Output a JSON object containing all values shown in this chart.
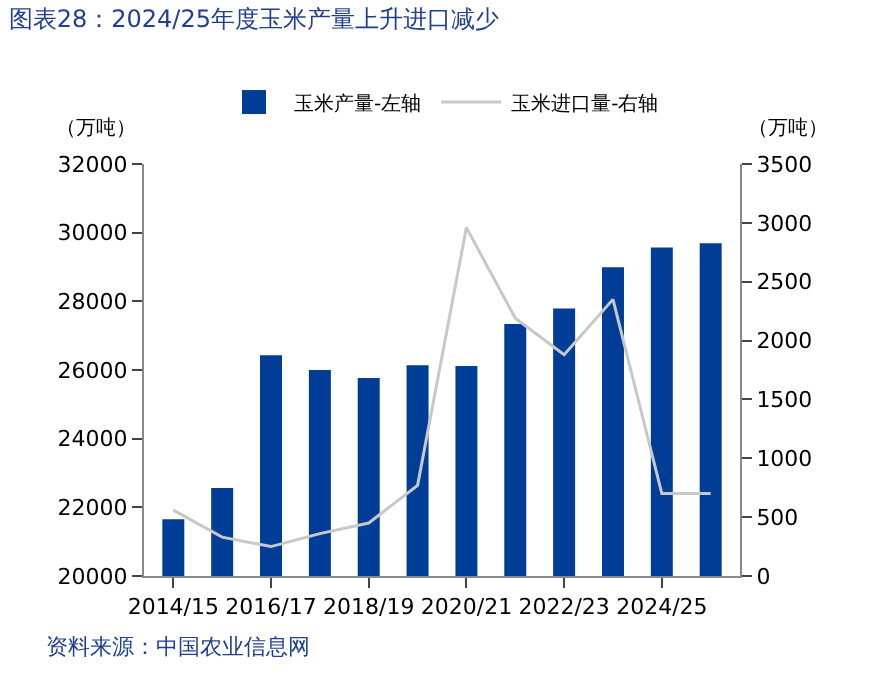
{
  "chart_data": {
    "type": "bar",
    "title": "图表28：2024/25年度玉米产量上升进口减少",
    "categories": [
      "2014/15",
      null,
      "2016/17",
      null,
      "2018/19",
      null,
      "2020/21",
      null,
      "2022/23",
      null,
      "2024/25",
      null
    ],
    "series": [
      {
        "name": "玉米产量-左轴",
        "color": "#003d96",
        "values": [
          21650,
          22560,
          26430,
          26000,
          25770,
          26140,
          26120,
          27340,
          27790,
          28990,
          29570,
          29690
        ]
      },
      {
        "name": "玉米进口量-右轴",
        "type": "line",
        "axis": "y2",
        "color": "#c8c8c8",
        "values": [
          560,
          330,
          250,
          360,
          450,
          770,
          2960,
          2190,
          1880,
          2350,
          700,
          700
        ]
      }
    ],
    "ylim": [
      20000,
      32000
    ],
    "yticks": [
      20000,
      22000,
      24000,
      26000,
      28000,
      30000,
      32000
    ],
    "y2lim": [
      0,
      3500
    ],
    "y2ticks": [
      0,
      500,
      1000,
      1500,
      2000,
      2500,
      3000,
      3500
    ],
    "ylabel": "（万吨）",
    "y2label": "（万吨）",
    "legend": "top",
    "grid": false,
    "marker": "none",
    "line_style": "solid",
    "annotations": [
      "资料来源：中国农业信息网"
    ]
  }
}
